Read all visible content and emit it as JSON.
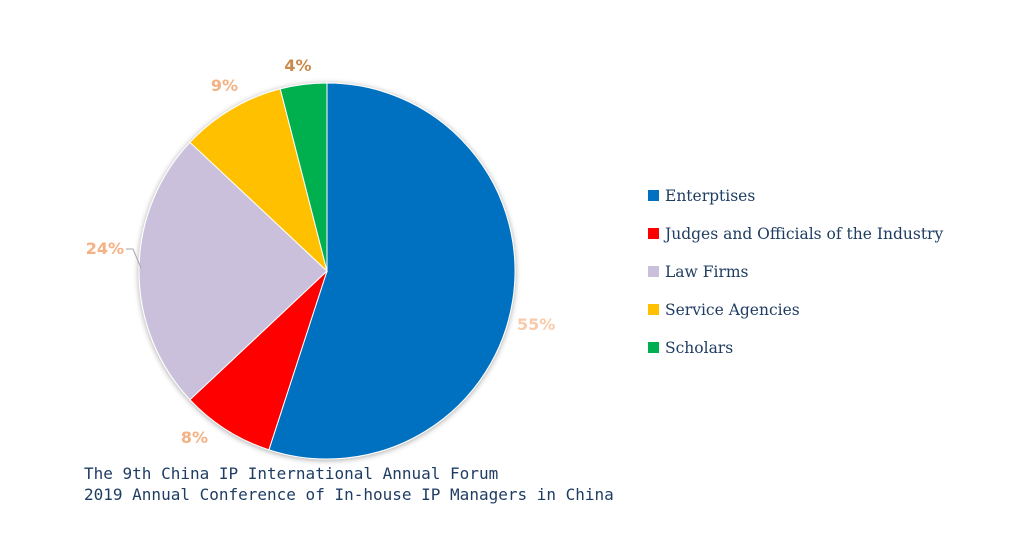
{
  "chart_data": {
    "type": "pie",
    "slices": [
      {
        "name": "Enterptises",
        "value": 55,
        "label": "55%",
        "color": "#0070C0",
        "label_color": "#F8CBAD"
      },
      {
        "name": "Judges and Officials of the Industry",
        "value": 8,
        "label": "8%",
        "color": "#FF0000",
        "label_color": "#F4B183"
      },
      {
        "name": "Law Firms",
        "value": 24,
        "label": "24%",
        "color": "#CBC0DC",
        "label_color": "#F4B183"
      },
      {
        "name": "Service Agencies",
        "value": 9,
        "label": "9%",
        "color": "#FFC000",
        "label_color": "#F4B183"
      },
      {
        "name": "Scholars",
        "value": 4,
        "label": "4%",
        "color": "#00B050",
        "label_color": "#C98A4B"
      }
    ],
    "legend_position": "right"
  },
  "caption": {
    "line1": "The 9th China IP International Annual Forum",
    "line2": "2019 Annual Conference of In-house IP Managers in China"
  }
}
